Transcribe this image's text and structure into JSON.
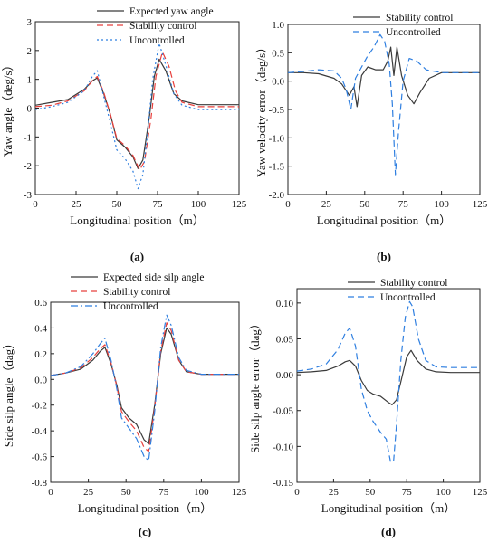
{
  "colors": {
    "black": "#3a3a3a",
    "red": "#e8403d",
    "blue": "#2f7fe0"
  },
  "chart_data": [
    {
      "panel": "(a)",
      "type": "line",
      "xlabel": "Longitudinal position（m）",
      "ylabel": "Yaw angle（deg/s）",
      "xlim": [
        0,
        125
      ],
      "ylim": [
        -3,
        3
      ],
      "xticks": [
        0,
        25,
        50,
        75,
        100,
        125
      ],
      "yticks": [
        -3,
        -2,
        -1,
        0,
        1,
        2,
        3
      ],
      "legend": "top-right",
      "series": [
        {
          "name": "Expected yaw angle",
          "color": "#3a3a3a",
          "style": "solid",
          "x": [
            0,
            10,
            20,
            30,
            35,
            38,
            42,
            46,
            50,
            55,
            60,
            63,
            66,
            70,
            73,
            76,
            80,
            85,
            90,
            100,
            125
          ],
          "y": [
            0.1,
            0.2,
            0.3,
            0.65,
            0.95,
            1.05,
            0.5,
            -0.2,
            -1.1,
            -1.35,
            -1.7,
            -2.1,
            -1.8,
            -0.3,
            1.1,
            1.7,
            1.3,
            0.5,
            0.25,
            0.12,
            0.12
          ]
        },
        {
          "name": "Stability control",
          "color": "#e8403d",
          "style": "dashed",
          "x": [
            0,
            10,
            20,
            30,
            35,
            38,
            42,
            46,
            50,
            55,
            60,
            64,
            67,
            71,
            74,
            78,
            82,
            86,
            90,
            100,
            125
          ],
          "y": [
            0.05,
            0.1,
            0.25,
            0.6,
            0.95,
            1.1,
            0.55,
            -0.2,
            -1.05,
            -1.3,
            -1.65,
            -2.15,
            -1.85,
            -0.35,
            1.1,
            1.95,
            1.45,
            0.6,
            0.2,
            0.05,
            0.05
          ]
        },
        {
          "name": "Uncontrolled",
          "color": "#2f7fe0",
          "style": "dotted",
          "x": [
            0,
            10,
            20,
            30,
            35,
            38,
            42,
            46,
            50,
            55,
            60,
            63,
            66,
            69,
            72,
            76,
            80,
            85,
            90,
            100,
            125
          ],
          "y": [
            -0.05,
            0.05,
            0.2,
            0.6,
            1.1,
            1.3,
            0.4,
            -0.5,
            -1.45,
            -1.75,
            -2.2,
            -2.8,
            -2.3,
            -0.8,
            1.0,
            2.25,
            1.5,
            0.5,
            0.1,
            -0.05,
            -0.05
          ]
        }
      ]
    },
    {
      "panel": "(b)",
      "type": "line",
      "xlabel": "Longitudinal position（m）",
      "ylabel": "Yaw velocity error（deg/s）",
      "xlim": [
        0,
        125
      ],
      "ylim": [
        -2.0,
        1.0
      ],
      "xticks": [
        0,
        25,
        50,
        75,
        100,
        125
      ],
      "yticks": [
        -2.0,
        -1.5,
        -1.0,
        -0.5,
        0.0,
        0.5,
        1.0
      ],
      "legend": "top-right",
      "series": [
        {
          "name": "Stability control",
          "color": "#3a3a3a",
          "style": "solid",
          "x": [
            0,
            10,
            20,
            30,
            35,
            40,
            43,
            45,
            48,
            52,
            57,
            62,
            65,
            67,
            69,
            71,
            74,
            78,
            82,
            86,
            92,
            100,
            125
          ],
          "y": [
            0.15,
            0.15,
            0.13,
            0.05,
            -0.05,
            -0.25,
            -0.1,
            -0.45,
            0.1,
            0.25,
            0.2,
            0.2,
            0.35,
            0.6,
            0.1,
            0.6,
            0.1,
            -0.25,
            -0.4,
            -0.2,
            0.05,
            0.15,
            0.15
          ]
        },
        {
          "name": "Uncontrolled",
          "color": "#2f7fe0",
          "style": "dashed",
          "x": [
            0,
            10,
            20,
            30,
            35,
            38,
            41,
            44,
            48,
            52,
            56,
            60,
            63,
            66,
            68,
            70,
            72,
            75,
            79,
            84,
            90,
            100,
            125
          ],
          "y": [
            0.15,
            0.17,
            0.2,
            0.18,
            0.05,
            -0.15,
            -0.5,
            0.05,
            0.25,
            0.45,
            0.6,
            0.82,
            0.7,
            0.3,
            -0.4,
            -1.65,
            -0.9,
            0.0,
            0.4,
            0.35,
            0.2,
            0.15,
            0.15
          ]
        }
      ]
    },
    {
      "panel": "(c)",
      "type": "line",
      "xlabel": "Longitudinal position（m）",
      "ylabel": "Side silp angle（dag）",
      "xlim": [
        0,
        125
      ],
      "ylim": [
        -0.8,
        0.6
      ],
      "xticks": [
        0,
        25,
        50,
        75,
        100,
        125
      ],
      "yticks": [
        -0.8,
        -0.6,
        -0.4,
        -0.2,
        0.0,
        0.2,
        0.4,
        0.6
      ],
      "legend": "top-right",
      "series": [
        {
          "name": "Expected side silp angle",
          "color": "#3a3a3a",
          "style": "solid",
          "x": [
            0,
            10,
            20,
            28,
            33,
            36,
            40,
            44,
            47,
            52,
            57,
            62,
            65,
            69,
            73,
            77,
            80,
            85,
            90,
            100,
            125
          ],
          "y": [
            0.03,
            0.05,
            0.08,
            0.15,
            0.22,
            0.25,
            0.12,
            -0.05,
            -0.22,
            -0.3,
            -0.35,
            -0.47,
            -0.5,
            -0.2,
            0.2,
            0.4,
            0.35,
            0.15,
            0.06,
            0.04,
            0.04
          ]
        },
        {
          "name": "Stability control",
          "color": "#e8403d",
          "style": "dashed",
          "x": [
            0,
            10,
            20,
            28,
            33,
            36,
            40,
            44,
            47,
            52,
            57,
            62,
            65,
            69,
            73,
            77,
            80,
            85,
            90,
            100,
            125
          ],
          "y": [
            0.03,
            0.05,
            0.09,
            0.17,
            0.24,
            0.27,
            0.13,
            -0.06,
            -0.25,
            -0.33,
            -0.4,
            -0.53,
            -0.56,
            -0.22,
            0.22,
            0.44,
            0.38,
            0.15,
            0.06,
            0.04,
            0.04
          ]
        },
        {
          "name": "Uncontrolled",
          "color": "#2f7fe0",
          "style": "dashdot",
          "x": [
            0,
            10,
            20,
            28,
            33,
            36,
            40,
            44,
            47,
            52,
            57,
            62,
            65,
            69,
            73,
            77,
            80,
            85,
            90,
            100,
            125
          ],
          "y": [
            0.03,
            0.05,
            0.1,
            0.2,
            0.28,
            0.32,
            0.15,
            -0.08,
            -0.3,
            -0.38,
            -0.46,
            -0.6,
            -0.63,
            -0.25,
            0.25,
            0.5,
            0.42,
            0.17,
            0.07,
            0.04,
            0.04
          ]
        }
      ]
    },
    {
      "panel": "(d)",
      "type": "line",
      "xlabel": "Longitudinal position（m）",
      "ylabel": "Side silp angle  error（dag）",
      "xlim": [
        0,
        125
      ],
      "ylim": [
        -0.15,
        0.12
      ],
      "xticks": [
        0,
        25,
        50,
        75,
        100,
        125
      ],
      "yticks": [
        -0.15,
        -0.1,
        -0.05,
        0.0,
        0.05,
        0.1
      ],
      "legend": "top-right",
      "series": [
        {
          "name": "Stability control",
          "color": "#3a3a3a",
          "style": "solid",
          "x": [
            0,
            10,
            20,
            28,
            33,
            36,
            40,
            44,
            48,
            52,
            57,
            62,
            65,
            68,
            71,
            75,
            78,
            82,
            88,
            95,
            105,
            125
          ],
          "y": [
            0.003,
            0.004,
            0.006,
            0.012,
            0.018,
            0.02,
            0.012,
            -0.008,
            -0.022,
            -0.027,
            -0.03,
            -0.038,
            -0.042,
            -0.035,
            -0.01,
            0.025,
            0.034,
            0.02,
            0.008,
            0.004,
            0.003,
            0.003
          ]
        },
        {
          "name": "Uncontrolled",
          "color": "#2f7fe0",
          "style": "dashed",
          "x": [
            0,
            10,
            20,
            28,
            33,
            36,
            40,
            44,
            48,
            52,
            57,
            61,
            64,
            66,
            68,
            71,
            74,
            77,
            79,
            83,
            88,
            95,
            105,
            125
          ],
          "y": [
            0.005,
            0.008,
            0.015,
            0.035,
            0.058,
            0.065,
            0.04,
            -0.02,
            -0.05,
            -0.065,
            -0.08,
            -0.09,
            -0.122,
            -0.12,
            -0.07,
            0.02,
            0.08,
            0.102,
            0.095,
            0.05,
            0.02,
            0.011,
            0.01,
            0.01
          ]
        }
      ]
    }
  ]
}
